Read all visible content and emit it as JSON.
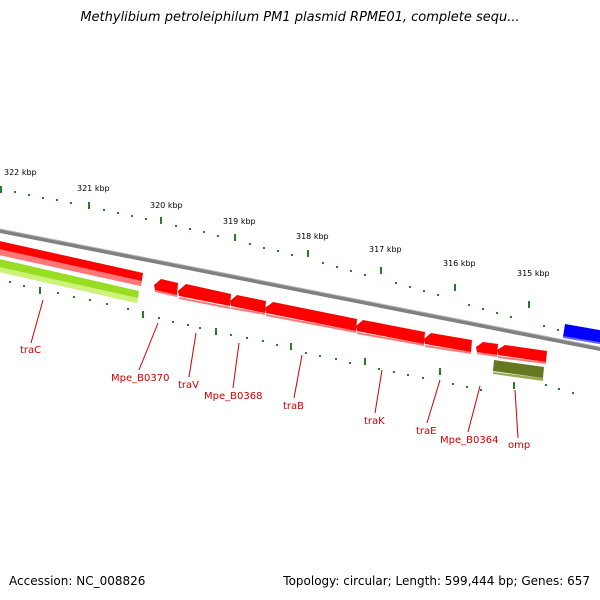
{
  "title": "Methylibium petroleiphilum PM1 plasmid RPME01, complete sequ...",
  "footer": {
    "accession": "Accession: NC_008826",
    "summary": "Topology: circular; Length: 599,444 bp; Genes: 657"
  },
  "scale_labels": [
    "322 kbp",
    "321 kbp",
    "320 kbp",
    "319 kbp",
    "318 kbp",
    "317 kbp",
    "316 kbp",
    "315 kbp"
  ],
  "gene_labels": [
    "traC",
    "Mpe_B0370",
    "traV",
    "Mpe_B0368",
    "traB",
    "traK",
    "traE",
    "Mpe_B0364",
    "omp"
  ],
  "colors": {
    "backbone": "#808080",
    "gene_red": "#ff0000",
    "gene_green": "#99dd22",
    "gene_olive": "#667722",
    "gene_blue": "#0000ff",
    "tick_green": "#2a7a2a",
    "label_red": "#cc0000"
  }
}
